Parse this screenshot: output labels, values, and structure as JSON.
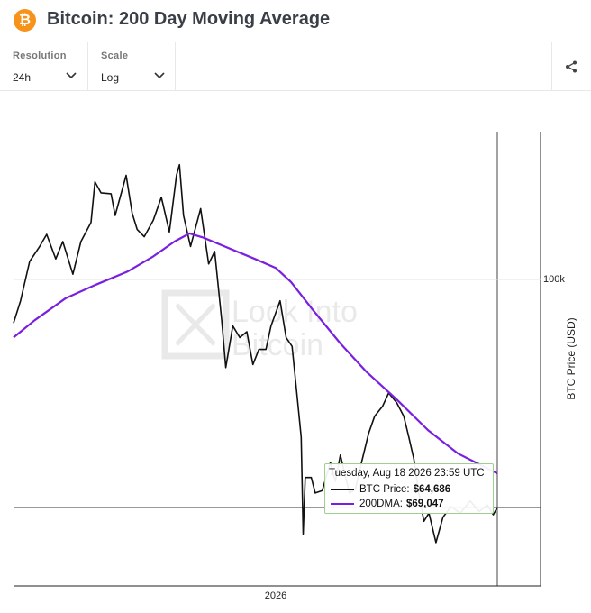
{
  "header": {
    "title": "Bitcoin: 200 Day Moving Average",
    "logo_glyph": "₿",
    "logo_color": "#f7931a"
  },
  "controls": {
    "resolution": {
      "label": "Resolution",
      "value": "24h"
    },
    "scale": {
      "label": "Scale",
      "value": "Log"
    }
  },
  "watermark": {
    "line1": "Look Into",
    "line2": "Bitcoin"
  },
  "tooltip": {
    "date": "Tuesday, Aug 18 2026 23:59 UTC",
    "btc_label": "BTC Price:",
    "btc_value": "$64,686",
    "dma_label": "200DMA:",
    "dma_value": "$69,047"
  },
  "chart_data": {
    "type": "line",
    "y_scale": "log",
    "ylabel": "BTC Price (USD)",
    "x_ticks": [
      "2026"
    ],
    "y_ticks": [
      "100k"
    ],
    "x_range": [
      "2025-04-24",
      "2026-08-18"
    ],
    "crosshair": {
      "date": "2026-08-18",
      "price": 64686
    },
    "colors": {
      "btc": "#111111",
      "dma": "#7a1fe0"
    },
    "series": [
      {
        "name": "BTC Price",
        "color": "#111111",
        "points": [
          [
            "2025-04-24",
            92000
          ],
          [
            "2025-05-01",
            96000
          ],
          [
            "2025-05-10",
            103500
          ],
          [
            "2025-05-20",
            106500
          ],
          [
            "2025-05-27",
            109000
          ],
          [
            "2025-06-05",
            104000
          ],
          [
            "2025-06-12",
            107500
          ],
          [
            "2025-06-22",
            101000
          ],
          [
            "2025-06-30",
            107500
          ],
          [
            "2025-07-10",
            111500
          ],
          [
            "2025-07-14",
            120500
          ],
          [
            "2025-07-20",
            118000
          ],
          [
            "2025-07-30",
            117800
          ],
          [
            "2025-08-03",
            113000
          ],
          [
            "2025-08-14",
            122000
          ],
          [
            "2025-08-20",
            113500
          ],
          [
            "2025-08-25",
            110000
          ],
          [
            "2025-09-01",
            108500
          ],
          [
            "2025-09-10",
            112000
          ],
          [
            "2025-09-18",
            117000
          ],
          [
            "2025-09-26",
            109500
          ],
          [
            "2025-10-03",
            122000
          ],
          [
            "2025-10-06",
            124500
          ],
          [
            "2025-10-10",
            113000
          ],
          [
            "2025-10-17",
            106500
          ],
          [
            "2025-10-27",
            114500
          ],
          [
            "2025-11-04",
            103000
          ],
          [
            "2025-11-10",
            105500
          ],
          [
            "2025-11-17",
            92500
          ],
          [
            "2025-11-21",
            84500
          ],
          [
            "2025-11-28",
            91500
          ],
          [
            "2025-12-05",
            89500
          ],
          [
            "2025-12-12",
            90500
          ],
          [
            "2025-12-18",
            85000
          ],
          [
            "2025-12-24",
            87500
          ],
          [
            "2025-12-31",
            87500
          ],
          [
            "2026-01-05",
            91500
          ],
          [
            "2026-01-14",
            96000
          ],
          [
            "2026-01-20",
            89500
          ],
          [
            "2026-01-26",
            88000
          ],
          [
            "2026-01-31",
            80000
          ],
          [
            "2026-02-04",
            74000
          ],
          [
            "2026-02-06",
            61500
          ],
          [
            "2026-02-08",
            68500
          ],
          [
            "2026-02-14",
            68500
          ],
          [
            "2026-02-18",
            66500
          ],
          [
            "2026-02-25",
            66800
          ],
          [
            "2026-03-05",
            70500
          ],
          [
            "2026-03-10",
            68000
          ],
          [
            "2026-03-15",
            71500
          ],
          [
            "2026-03-24",
            66500
          ],
          [
            "2026-03-30",
            67000
          ],
          [
            "2026-04-05",
            70500
          ],
          [
            "2026-04-12",
            74500
          ],
          [
            "2026-04-18",
            77000
          ],
          [
            "2026-04-26",
            78500
          ],
          [
            "2026-05-02",
            80500
          ],
          [
            "2026-05-10",
            79000
          ],
          [
            "2026-05-17",
            77000
          ],
          [
            "2026-05-22",
            74000
          ],
          [
            "2026-05-27",
            71000
          ],
          [
            "2026-06-01",
            66500
          ],
          [
            "2026-06-06",
            63000
          ],
          [
            "2026-06-11",
            64000
          ],
          [
            "2026-06-18",
            60500
          ],
          [
            "2026-06-25",
            63500
          ],
          [
            "2026-07-03",
            64800
          ],
          [
            "2026-07-12",
            64000
          ],
          [
            "2026-07-22",
            65500
          ],
          [
            "2026-07-31",
            64200
          ],
          [
            "2026-08-08",
            65000
          ],
          [
            "2026-08-14",
            63800
          ],
          [
            "2026-08-18",
            64686
          ]
        ]
      },
      {
        "name": "200DMA",
        "color": "#7a1fe0",
        "points": [
          [
            "2025-04-24",
            89500
          ],
          [
            "2025-05-15",
            92500
          ],
          [
            "2025-06-15",
            96500
          ],
          [
            "2025-07-15",
            99000
          ],
          [
            "2025-08-15",
            101500
          ],
          [
            "2025-09-10",
            104500
          ],
          [
            "2025-10-01",
            107500
          ],
          [
            "2025-10-16",
            109200
          ],
          [
            "2025-10-30",
            108300
          ],
          [
            "2025-11-20",
            106500
          ],
          [
            "2025-12-20",
            104000
          ],
          [
            "2026-01-10",
            102200
          ],
          [
            "2026-01-25",
            99500
          ],
          [
            "2026-02-15",
            94500
          ],
          [
            "2026-03-15",
            88500
          ],
          [
            "2026-04-10",
            83800
          ],
          [
            "2026-05-10",
            79500
          ],
          [
            "2026-06-10",
            75000
          ],
          [
            "2026-07-10",
            71700
          ],
          [
            "2026-08-18",
            69047
          ]
        ]
      }
    ]
  }
}
